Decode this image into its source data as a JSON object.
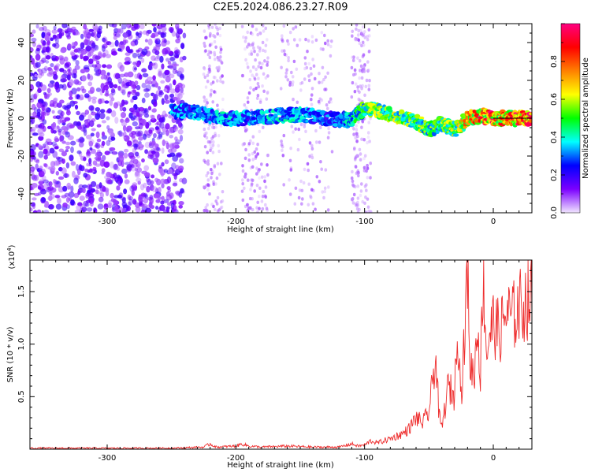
{
  "title": "C2E5.2024.086.23.27.R09",
  "colors": {
    "line": "#ee2b2b",
    "axis": "#000000",
    "colormap": [
      "#f2e6ff",
      "#7b00ff",
      "#0000ff",
      "#00ffff",
      "#00ff00",
      "#ffff00",
      "#ff8000",
      "#ff0000",
      "#ff0080"
    ]
  },
  "chart_data": [
    {
      "type": "heatmap",
      "xlabel": "Height of straight line (km)",
      "ylabel": "Frequency (Hz)",
      "xlim": [
        -360,
        30
      ],
      "ylim": [
        -50,
        50
      ],
      "xticks": [
        -300,
        -200,
        -100,
        0
      ],
      "yticks": [
        -40,
        -20,
        0,
        20,
        40
      ],
      "colorbar": {
        "label": "Normalized spectral amplitude",
        "range": [
          0,
          1
        ],
        "ticks": [
          "0.0",
          "0.2",
          "0.4",
          "0.6",
          "0.8"
        ]
      },
      "features": {
        "noise_region_x": [
          -360,
          -240
        ],
        "noise_bands_x": [
          [
            -225,
            -210
          ],
          [
            -195,
            -175
          ],
          [
            -165,
            -125
          ],
          [
            -110,
            -95
          ]
        ],
        "signal_track": [
          {
            "x": -250,
            "y": 4,
            "amp": 0.35
          },
          {
            "x": -230,
            "y": 3,
            "amp": 0.35
          },
          {
            "x": -210,
            "y": 0,
            "amp": 0.4
          },
          {
            "x": -190,
            "y": 0,
            "amp": 0.35
          },
          {
            "x": -170,
            "y": 1,
            "amp": 0.4
          },
          {
            "x": -150,
            "y": 2,
            "amp": 0.4
          },
          {
            "x": -130,
            "y": 0,
            "amp": 0.3
          },
          {
            "x": -110,
            "y": -1,
            "amp": 0.45
          },
          {
            "x": -100,
            "y": 5,
            "amp": 0.55
          },
          {
            "x": -80,
            "y": 2,
            "amp": 0.6
          },
          {
            "x": -60,
            "y": -2,
            "amp": 0.6
          },
          {
            "x": -50,
            "y": -6,
            "amp": 0.55
          },
          {
            "x": -40,
            "y": -3,
            "amp": 0.6
          },
          {
            "x": -30,
            "y": -6,
            "amp": 0.6
          },
          {
            "x": -20,
            "y": 0,
            "amp": 0.75
          },
          {
            "x": -10,
            "y": 1,
            "amp": 0.85
          },
          {
            "x": 0,
            "y": 0,
            "amp": 0.95
          },
          {
            "x": 10,
            "y": 0,
            "amp": 0.8
          },
          {
            "x": 20,
            "y": 0,
            "amp": 1.0
          },
          {
            "x": 30,
            "y": 0,
            "amp": 1.0
          }
        ]
      }
    },
    {
      "type": "line",
      "xlabel": "Height of straight line (km)",
      "ylabel": "SNR (10 * v/v)",
      "yunit": "(x10",
      "yunit_exp": "4",
      "yunit_close": ")",
      "xlim": [
        -360,
        30
      ],
      "ylim": [
        0,
        1.8
      ],
      "xticks": [
        -300,
        -200,
        -100,
        0
      ],
      "yticks": [
        0.5,
        1.0,
        1.5
      ],
      "ytick_labels": [
        "0.5",
        "1.0",
        "1.5"
      ],
      "series": [
        {
          "x": [
            -360,
            -300,
            -250,
            -225,
            -220,
            -215,
            -200,
            -195,
            -190,
            -180,
            -160,
            -140,
            -120,
            -110,
            -105,
            -100,
            -95,
            -90,
            -80,
            -70,
            -65,
            -60,
            -55,
            -50,
            -48,
            -45,
            -42,
            -40,
            -35,
            -30,
            -28,
            -25,
            -22,
            -20,
            -18,
            -15,
            -12,
            -10,
            -8,
            -5,
            -3,
            0,
            5,
            10,
            15,
            20,
            25,
            30
          ],
          "y": [
            0.01,
            0.01,
            0.01,
            0.02,
            0.05,
            0.02,
            0.03,
            0.05,
            0.03,
            0.02,
            0.03,
            0.02,
            0.02,
            0.05,
            0.03,
            0.04,
            0.08,
            0.06,
            0.1,
            0.15,
            0.2,
            0.3,
            0.25,
            0.35,
            0.55,
            0.9,
            0.3,
            0.2,
            0.6,
            0.5,
            1.3,
            0.5,
            1.1,
            1.8,
            0.8,
            0.7,
            1.2,
            0.7,
            1.65,
            0.9,
            1.1,
            1.2,
            1.1,
            1.3,
            1.25,
            1.35,
            1.4,
            1.45
          ]
        }
      ]
    }
  ]
}
